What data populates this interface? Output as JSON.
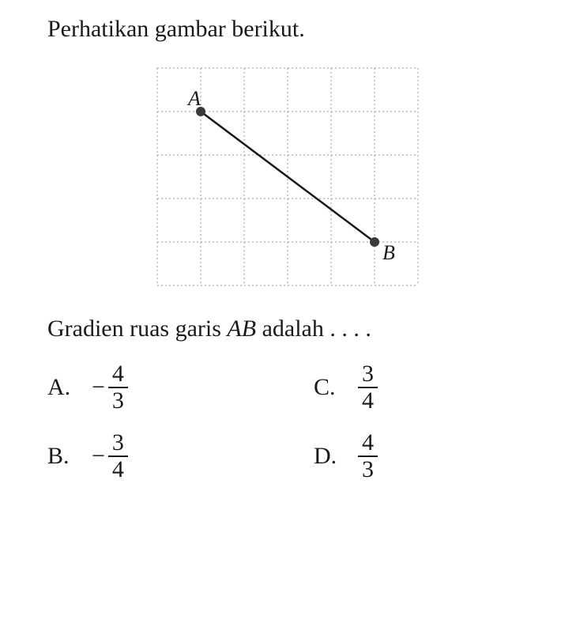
{
  "question": {
    "prompt": "Perhatikan gambar berikut.",
    "gradient_line_prefix": "Gradien ruas garis ",
    "gradient_line_var": "AB",
    "gradient_line_suffix": " adalah . . . ."
  },
  "diagram": {
    "type": "grid-line-segment",
    "grid": {
      "cols": 6,
      "rows": 5,
      "cell_size": 55,
      "line_color": "#9a9a9a",
      "line_dash": "2,3",
      "background_color": "#ffffff"
    },
    "points": {
      "A": {
        "label": "A",
        "col": 1,
        "row": 1,
        "label_dx": -16,
        "label_dy": -8
      },
      "B": {
        "label": "B",
        "col": 5,
        "row": 4,
        "label_dx": 10,
        "label_dy": 22
      }
    },
    "segment": {
      "from": "A",
      "to": "B",
      "stroke": "#1a1a1a",
      "stroke_width": 2.5
    },
    "point_style": {
      "radius": 6,
      "fill": "#3a3a3a"
    },
    "label_style": {
      "font_size": 26,
      "font_style": "italic",
      "fill": "#1a1a1a"
    }
  },
  "answers": {
    "A": {
      "label": "A.",
      "negative": true,
      "num": "4",
      "den": "3"
    },
    "B": {
      "label": "B.",
      "negative": true,
      "num": "3",
      "den": "4"
    },
    "C": {
      "label": "C.",
      "negative": false,
      "num": "3",
      "den": "4"
    },
    "D": {
      "label": "D.",
      "negative": false,
      "num": "4",
      "den": "3"
    }
  }
}
